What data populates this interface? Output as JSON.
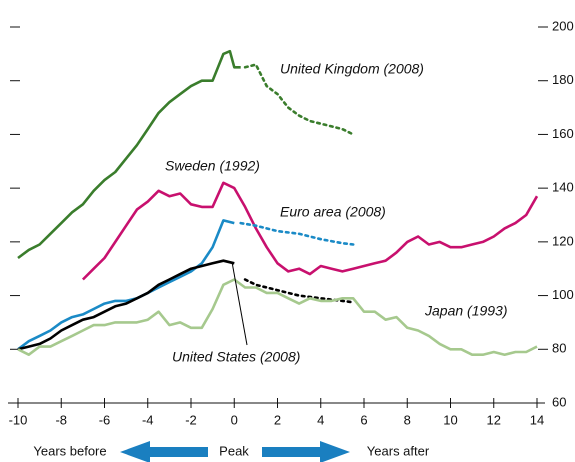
{
  "chart_data": {
    "type": "line",
    "xlim": [
      -10,
      14
    ],
    "ylim": [
      60,
      200
    ],
    "xticks": [
      -10,
      -8,
      -6,
      -4,
      -2,
      0,
      2,
      4,
      6,
      8,
      10,
      12,
      14
    ],
    "yticks": [
      60,
      80,
      100,
      120,
      140,
      160,
      180,
      200
    ],
    "footer": {
      "left": "Years before",
      "center": "Peak",
      "right": "Years after"
    },
    "series": [
      {
        "name": "United Kingdom (2008)",
        "color": "#3a7d2c",
        "x": [
          -10,
          -9.5,
          -9,
          -8.5,
          -8,
          -7.5,
          -7,
          -6.5,
          -6,
          -5.5,
          -5,
          -4.5,
          -4,
          -3.5,
          -3,
          -2.5,
          -2,
          -1.5,
          -1,
          -0.5,
          -0.2,
          0,
          0.3
        ],
        "values": [
          114,
          117,
          119,
          123,
          127,
          131,
          134,
          139,
          143,
          146,
          151,
          156,
          162,
          168,
          172,
          175,
          178,
          180,
          180,
          190,
          191,
          185,
          185
        ],
        "projection": {
          "x": [
            0.5,
            1,
            1.5,
            2,
            2.5,
            3,
            3.5,
            4,
            4.5,
            5,
            5.5
          ],
          "values": [
            185,
            186,
            178,
            175,
            170,
            167,
            165,
            164,
            163,
            162,
            160
          ]
        }
      },
      {
        "name": "Sweden (1992)",
        "color": "#c8106e",
        "x": [
          -7,
          -6.5,
          -6,
          -5.5,
          -5,
          -4.5,
          -4,
          -3.5,
          -3,
          -2.5,
          -2,
          -1.5,
          -1,
          -0.5,
          0,
          0.5,
          1,
          1.5,
          2,
          2.5,
          3,
          3.5,
          4,
          4.5,
          5,
          5.5,
          6,
          6.5,
          7,
          7.5,
          8,
          8.5,
          9,
          9.5,
          10,
          10.5,
          11,
          11.5,
          12,
          12.5,
          13,
          13.5,
          14
        ],
        "values": [
          106,
          110,
          114,
          120,
          126,
          132,
          135,
          139,
          137,
          138,
          134,
          133,
          133,
          142,
          140,
          133,
          125,
          118,
          112,
          109,
          110,
          108,
          111,
          110,
          109,
          110,
          111,
          112,
          113,
          116,
          120,
          122,
          119,
          120,
          118,
          118,
          119,
          120,
          122,
          125,
          127,
          130,
          137
        ]
      },
      {
        "name": "Euro area (2008)",
        "color": "#1a8ac6",
        "x": [
          -10,
          -9.5,
          -9,
          -8.5,
          -8,
          -7.5,
          -7,
          -6.5,
          -6,
          -5.5,
          -5,
          -4.5,
          -4,
          -3.5,
          -3,
          -2.5,
          -2,
          -1.5,
          -1,
          -0.5,
          0
        ],
        "values": [
          80,
          83,
          85,
          87,
          90,
          92,
          93,
          95,
          97,
          98,
          98,
          99,
          101,
          103,
          105,
          107,
          109,
          112,
          118,
          128,
          127
        ],
        "projection": {
          "x": [
            0.3,
            1,
            2,
            3,
            4,
            5,
            5.5
          ],
          "values": [
            127,
            126,
            124,
            123,
            121,
            119.5,
            119
          ]
        }
      },
      {
        "name": "United States (2008)",
        "color": "#000000",
        "x": [
          -10,
          -9.5,
          -9,
          -8.5,
          -8,
          -7.5,
          -7,
          -6.5,
          -6,
          -5.5,
          -5,
          -4.5,
          -4,
          -3.5,
          -3,
          -2.5,
          -2,
          -1.5,
          -1,
          -0.5,
          0
        ],
        "values": [
          80,
          81,
          82,
          84,
          87,
          89,
          91,
          92,
          94,
          96,
          97,
          99,
          101,
          104,
          106,
          108,
          110,
          111,
          112,
          113,
          112
        ],
        "projection": {
          "x": [
            0.5,
            1,
            2,
            3,
            4,
            5,
            5.5
          ],
          "values": [
            106,
            104,
            102,
            100,
            99,
            98,
            97.5
          ]
        }
      },
      {
        "name": "Japan (1993)",
        "color": "#a6c98e",
        "x": [
          -10,
          -9.5,
          -9,
          -8.5,
          -8,
          -7.5,
          -7,
          -6.5,
          -6,
          -5.5,
          -5,
          -4.5,
          -4,
          -3.5,
          -3,
          -2.5,
          -2,
          -1.5,
          -1,
          -0.5,
          0,
          0.5,
          1,
          1.5,
          2,
          2.5,
          3,
          3.5,
          4,
          4.5,
          5,
          5.5,
          6,
          6.5,
          7,
          7.5,
          8,
          8.5,
          9,
          9.5,
          10,
          10.5,
          11,
          11.5,
          12,
          12.5,
          13,
          13.5,
          14
        ],
        "values": [
          80,
          78,
          81,
          81,
          83,
          85,
          87,
          89,
          89,
          90,
          90,
          90,
          91,
          94,
          89,
          90,
          88,
          88,
          95,
          104,
          106,
          103,
          103,
          101,
          101,
          99,
          97,
          99,
          98,
          98,
          99,
          99,
          94,
          94,
          91,
          92,
          88,
          87,
          85,
          82,
          80,
          80,
          78,
          78,
          79,
          78,
          79,
          79,
          81
        ]
      }
    ]
  }
}
